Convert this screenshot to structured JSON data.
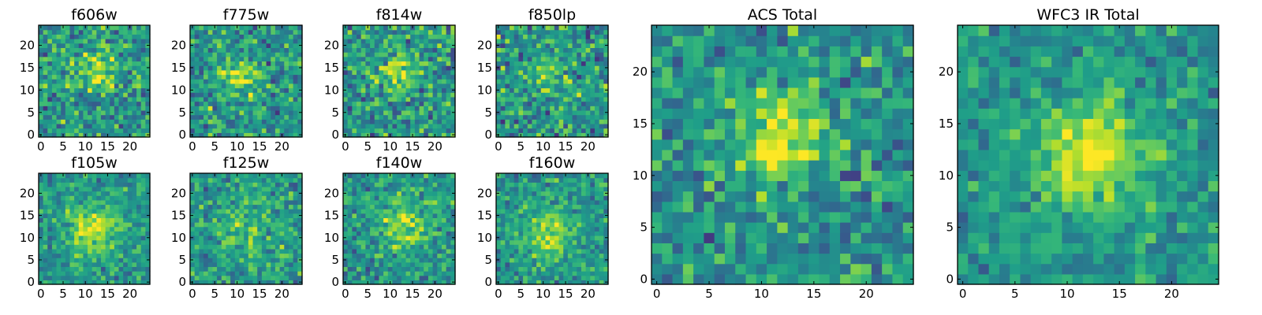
{
  "chart_data": [
    {
      "type": "heatmap",
      "title": "f606w",
      "xticks": [
        "0",
        "5",
        "10",
        "15",
        "20"
      ],
      "yticks": [
        "0",
        "5",
        "10",
        "15",
        "20"
      ],
      "xlim": [
        -0.5,
        24.5
      ],
      "ylim": [
        -0.5,
        24.5
      ],
      "colormap": "viridis",
      "grid": false,
      "source_center": [
        12,
        14
      ],
      "source_width": 3.5,
      "source_strength": 0.35,
      "noise": 0.3
    },
    {
      "type": "heatmap",
      "title": "f775w",
      "xticks": [
        "0",
        "5",
        "10",
        "15",
        "20"
      ],
      "yticks": [
        "0",
        "5",
        "10",
        "15",
        "20"
      ],
      "xlim": [
        -0.5,
        24.5
      ],
      "ylim": [
        -0.5,
        24.5
      ],
      "colormap": "viridis",
      "grid": false,
      "source_center": [
        11,
        13
      ],
      "source_width": 3.0,
      "source_strength": 0.4,
      "noise": 0.3
    },
    {
      "type": "heatmap",
      "title": "f814w",
      "xticks": [
        "0",
        "5",
        "10",
        "15",
        "20"
      ],
      "yticks": [
        "0",
        "5",
        "10",
        "15",
        "20"
      ],
      "xlim": [
        -0.5,
        24.5
      ],
      "ylim": [
        -0.5,
        24.5
      ],
      "colormap": "viridis",
      "grid": false,
      "source_center": [
        12,
        14
      ],
      "source_width": 3.0,
      "source_strength": 0.35,
      "noise": 0.3
    },
    {
      "type": "heatmap",
      "title": "f850lp",
      "xticks": [
        "0",
        "5",
        "10",
        "15",
        "20"
      ],
      "yticks": [
        "0",
        "5",
        "10",
        "15",
        "20"
      ],
      "xlim": [
        -0.5,
        24.5
      ],
      "ylim": [
        -0.5,
        24.5
      ],
      "colormap": "viridis",
      "grid": false,
      "source_center": [
        11,
        14
      ],
      "source_width": 3.5,
      "source_strength": 0.2,
      "noise": 0.32
    },
    {
      "type": "heatmap",
      "title": "f105w",
      "xticks": [
        "0",
        "5",
        "10",
        "15",
        "20"
      ],
      "yticks": [
        "0",
        "5",
        "10",
        "15",
        "20"
      ],
      "xlim": [
        -0.5,
        24.5
      ],
      "ylim": [
        -0.5,
        24.5
      ],
      "colormap": "viridis",
      "grid": false,
      "source_center": [
        12,
        12
      ],
      "source_width": 4.0,
      "source_strength": 0.4,
      "noise": 0.22
    },
    {
      "type": "heatmap",
      "title": "f125w",
      "xticks": [
        "0",
        "5",
        "10",
        "15",
        "20"
      ],
      "yticks": [
        "0",
        "5",
        "10",
        "15",
        "20"
      ],
      "xlim": [
        -0.5,
        24.5
      ],
      "ylim": [
        -0.5,
        24.5
      ],
      "colormap": "viridis",
      "grid": false,
      "source_center": [
        12,
        12
      ],
      "source_width": 5.0,
      "source_strength": 0.2,
      "noise": 0.25
    },
    {
      "type": "heatmap",
      "title": "f140w",
      "xticks": [
        "0",
        "5",
        "10",
        "15",
        "20"
      ],
      "yticks": [
        "0",
        "5",
        "10",
        "15",
        "20"
      ],
      "xlim": [
        -0.5,
        24.5
      ],
      "ylim": [
        -0.5,
        24.5
      ],
      "colormap": "viridis",
      "grid": false,
      "source_center": [
        13,
        13
      ],
      "source_width": 4.0,
      "source_strength": 0.35,
      "noise": 0.25
    },
    {
      "type": "heatmap",
      "title": "f160w",
      "xticks": [
        "0",
        "5",
        "10",
        "15",
        "20"
      ],
      "yticks": [
        "0",
        "5",
        "10",
        "15",
        "20"
      ],
      "xlim": [
        -0.5,
        24.5
      ],
      "ylim": [
        -0.5,
        24.5
      ],
      "colormap": "viridis",
      "grid": false,
      "source_center": [
        11,
        11
      ],
      "source_width": 4.0,
      "source_strength": 0.35,
      "noise": 0.22
    },
    {
      "type": "heatmap",
      "title": "ACS Total",
      "xticks": [
        "0",
        "5",
        "10",
        "15",
        "20"
      ],
      "yticks": [
        "0",
        "5",
        "10",
        "15",
        "20"
      ],
      "xlim": [
        -0.5,
        24.5
      ],
      "ylim": [
        -0.5,
        24.5
      ],
      "colormap": "viridis",
      "grid": false,
      "source_center": [
        12,
        14
      ],
      "source_width": 2.8,
      "source_strength": 0.45,
      "noise": 0.28
    },
    {
      "type": "heatmap",
      "title": "WFC3 IR Total",
      "xticks": [
        "0",
        "5",
        "10",
        "15",
        "20"
      ],
      "yticks": [
        "0",
        "5",
        "10",
        "15",
        "20"
      ],
      "xlim": [
        -0.5,
        24.5
      ],
      "ylim": [
        -0.5,
        24.5
      ],
      "colormap": "viridis",
      "grid": false,
      "source_center": [
        12,
        12
      ],
      "source_width": 3.5,
      "source_strength": 0.5,
      "noise": 0.2
    }
  ]
}
